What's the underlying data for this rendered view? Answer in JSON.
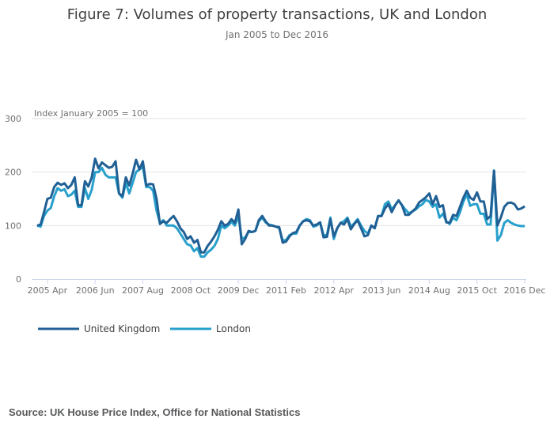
{
  "title": "Figure 7: Volumes of property transactions, UK and London",
  "subtitle": "Jan 2005 to Dec 2016",
  "source": "Source: UK House Price Index, Office for National Statistics",
  "colors": {
    "uk": "#206095",
    "london": "#27a0cc"
  },
  "chart_data": {
    "type": "line",
    "ylabel": "Index January 2005 = 100",
    "ylim": [
      0,
      300
    ],
    "yticks": [
      "0",
      "100",
      "200",
      "300"
    ],
    "grid": true,
    "legend_placement": "bottom-left",
    "x_start": "2005-01",
    "x_end": "2016-12",
    "x_frequency": "monthly",
    "xticks": [
      {
        "label": "2005 Apr",
        "month": "2005-04"
      },
      {
        "label": "2006 Jun",
        "month": "2006-06"
      },
      {
        "label": "2007 Aug",
        "month": "2007-08"
      },
      {
        "label": "2008 Oct",
        "month": "2008-10"
      },
      {
        "label": "2009 Dec",
        "month": "2009-12"
      },
      {
        "label": "2011 Feb",
        "month": "2011-02"
      },
      {
        "label": "2012 Apr",
        "month": "2012-04"
      },
      {
        "label": "2013 Jun",
        "month": "2013-06"
      },
      {
        "label": "2014 Aug",
        "month": "2014-08"
      },
      {
        "label": "2015 Oct",
        "month": "2015-10"
      },
      {
        "label": "2016 Dec",
        "month": "2016-12"
      }
    ],
    "series": [
      {
        "name": "United Kingdom",
        "color": "#206095",
        "values": [
          100,
          102,
          125,
          150,
          152,
          172,
          180,
          176,
          179,
          170,
          176,
          190,
          138,
          138,
          183,
          173,
          190,
          225,
          207,
          218,
          213,
          208,
          210,
          220,
          160,
          155,
          190,
          175,
          197,
          223,
          205,
          220,
          175,
          178,
          177,
          150,
          103,
          108,
          105,
          112,
          118,
          108,
          95,
          88,
          75,
          80,
          68,
          73,
          50,
          50,
          62,
          70,
          80,
          92,
          108,
          100,
          103,
          112,
          105,
          130,
          65,
          75,
          90,
          88,
          90,
          110,
          118,
          108,
          100,
          100,
          98,
          97,
          68,
          70,
          80,
          86,
          88,
          100,
          108,
          110,
          108,
          100,
          102,
          106,
          78,
          79,
          112,
          80,
          95,
          105,
          102,
          112,
          93,
          103,
          110,
          95,
          80,
          82,
          100,
          95,
          118,
          118,
          132,
          140,
          125,
          138,
          147,
          138,
          120,
          120,
          126,
          132,
          143,
          148,
          153,
          160,
          140,
          155,
          135,
          138,
          106,
          105,
          120,
          118,
          135,
          152,
          165,
          152,
          148,
          162,
          145,
          145,
          112,
          118,
          202,
          100,
          115,
          135,
          142,
          143,
          140,
          130,
          132,
          136
        ]
      },
      {
        "name": "London",
        "color": "#27a0cc",
        "values": [
          100,
          98,
          118,
          128,
          133,
          155,
          170,
          165,
          168,
          155,
          158,
          165,
          135,
          135,
          170,
          150,
          167,
          200,
          200,
          208,
          195,
          190,
          190,
          190,
          160,
          152,
          180,
          160,
          180,
          200,
          205,
          210,
          172,
          172,
          165,
          128,
          105,
          110,
          100,
          100,
          100,
          95,
          85,
          75,
          65,
          63,
          52,
          58,
          42,
          42,
          50,
          55,
          62,
          75,
          100,
          95,
          100,
          107,
          100,
          118,
          75,
          78,
          88,
          88,
          90,
          108,
          115,
          106,
          102,
          100,
          98,
          95,
          72,
          73,
          82,
          85,
          85,
          100,
          108,
          112,
          110,
          98,
          100,
          106,
          82,
          83,
          115,
          75,
          95,
          105,
          108,
          115,
          98,
          104,
          112,
          100,
          90,
          85,
          100,
          95,
          118,
          118,
          140,
          145,
          130,
          138,
          147,
          138,
          130,
          123,
          126,
          130,
          136,
          140,
          148,
          145,
          135,
          140,
          115,
          122,
          108,
          103,
          115,
          110,
          125,
          145,
          158,
          137,
          140,
          140,
          122,
          122,
          102,
          102,
          203,
          72,
          82,
          105,
          110,
          105,
          102,
          100,
          99,
          99
        ]
      }
    ]
  }
}
